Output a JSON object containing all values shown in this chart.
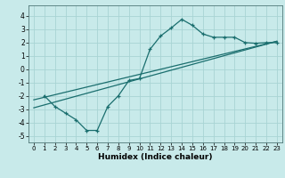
{
  "xlabel": "Humidex (Indice chaleur)",
  "bg_color": "#c8eaea",
  "grid_color": "#a8d4d4",
  "line_color": "#1a6e6e",
  "xlim": [
    -0.5,
    23.5
  ],
  "ylim": [
    -5.5,
    4.8
  ],
  "xticks": [
    0,
    1,
    2,
    3,
    4,
    5,
    6,
    7,
    8,
    9,
    10,
    11,
    12,
    13,
    14,
    15,
    16,
    17,
    18,
    19,
    20,
    21,
    22,
    23
  ],
  "yticks": [
    -5,
    -4,
    -3,
    -2,
    -1,
    0,
    1,
    2,
    3,
    4
  ],
  "scatter_x": [
    1,
    2,
    3,
    4,
    5,
    6,
    7,
    8,
    9,
    10,
    11,
    12,
    13,
    14,
    15,
    16,
    17,
    18,
    19,
    20,
    21,
    22,
    23
  ],
  "scatter_y": [
    -2.0,
    -2.8,
    -3.3,
    -3.8,
    -4.6,
    -4.6,
    -2.8,
    -2.0,
    -0.85,
    -0.7,
    1.5,
    2.5,
    3.1,
    3.75,
    3.3,
    2.65,
    2.4,
    2.4,
    2.4,
    2.0,
    1.95,
    2.0,
    2.0
  ],
  "line1_x": [
    0,
    23
  ],
  "line1_y": [
    -2.3,
    2.1
  ],
  "line2_x": [
    0,
    23
  ],
  "line2_y": [
    -2.9,
    2.1
  ]
}
